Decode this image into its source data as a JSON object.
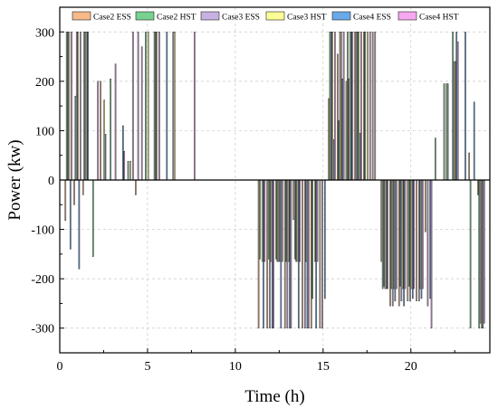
{
  "chart_data": {
    "type": "bar",
    "xlabel": "Time (h)",
    "ylabel": "Power (kw)",
    "xlim": [
      0,
      24.5
    ],
    "ylim": [
      -350,
      350
    ],
    "x_ticks": [
      0,
      5,
      10,
      15,
      20
    ],
    "y_ticks": [
      -300,
      -200,
      -100,
      0,
      100,
      200,
      300
    ],
    "grid": true,
    "legend_position": "top",
    "x": [
      0.5,
      1,
      1.5,
      2,
      2.5,
      3,
      3.5,
      4,
      4.5,
      5,
      5.5,
      6,
      6.5,
      7,
      7.5,
      8,
      8.5,
      9,
      9.5,
      10,
      10.5,
      11,
      11.5,
      12,
      12.5,
      13,
      13.5,
      14,
      14.5,
      15,
      15.5,
      16,
      16.5,
      17,
      17.5,
      18,
      18.5,
      19,
      19.5,
      20,
      20.5,
      21,
      21.5,
      22,
      22.5,
      23,
      23.5,
      24
    ],
    "series": [
      {
        "name": "Case2 ESS",
        "color": "#f5b98a",
        "values": [
          -82,
          -50,
          -30,
          0,
          200,
          0,
          0,
          0,
          -30,
          0,
          0,
          0,
          0,
          0,
          0,
          0,
          0,
          0,
          0,
          0,
          0,
          0,
          -300,
          -300,
          -160,
          -300,
          -80,
          -300,
          -300,
          -300,
          165,
          255,
          200,
          300,
          300,
          300,
          -165,
          -255,
          -255,
          -245,
          -245,
          -105,
          0,
          0,
          0,
          0,
          55,
          -30
        ]
      },
      {
        "name": "Case2 HST",
        "color": "#77d18f",
        "values": [
          300,
          170,
          300,
          -155,
          0,
          205,
          0,
          38,
          0,
          300,
          300,
          0,
          0,
          0,
          0,
          0,
          0,
          0,
          0,
          0,
          0,
          0,
          -160,
          -160,
          -165,
          -165,
          -160,
          0,
          -240,
          0,
          300,
          120,
          300,
          300,
          300,
          0,
          -220,
          -220,
          -215,
          -215,
          0,
          0,
          85,
          195,
          300,
          0,
          -300,
          -300
        ]
      },
      {
        "name": "Case3 ESS",
        "color": "#c8b1e2",
        "values": [
          300,
          300,
          300,
          0,
          0,
          0,
          0,
          0,
          300,
          0,
          300,
          0,
          300,
          0,
          0,
          0,
          0,
          0,
          0,
          0,
          0,
          0,
          0,
          -300,
          -165,
          -300,
          -165,
          -300,
          0,
          -300,
          300,
          300,
          205,
          300,
          0,
          300,
          -215,
          -255,
          -245,
          -245,
          -245,
          -255,
          0,
          0,
          240,
          0,
          0,
          -290
        ]
      },
      {
        "name": "Case3 HST",
        "color": "#fdfd96",
        "values": [
          300,
          300,
          300,
          0,
          162,
          0,
          0,
          38,
          0,
          300,
          300,
          0,
          300,
          0,
          0,
          0,
          0,
          0,
          0,
          0,
          0,
          0,
          -165,
          -165,
          -165,
          -165,
          -165,
          -165,
          -165,
          0,
          300,
          300,
          300,
          300,
          300,
          0,
          -220,
          -220,
          -220,
          -220,
          -220,
          0,
          0,
          195,
          240,
          0,
          0,
          -300
        ]
      },
      {
        "name": "Case4 ESS",
        "color": "#6aa8e8",
        "values": [
          -140,
          -180,
          300,
          0,
          93,
          0,
          110,
          0,
          0,
          0,
          0,
          300,
          0,
          0,
          0,
          0,
          0,
          0,
          0,
          0,
          0,
          0,
          -300,
          -300,
          -300,
          -300,
          -300,
          -300,
          -300,
          -240,
          82,
          205,
          300,
          95,
          0,
          0,
          -220,
          -245,
          -255,
          -240,
          -240,
          -240,
          0,
          195,
          300,
          300,
          158,
          -300
        ]
      },
      {
        "name": "Case4 HST",
        "color": "#f7a8f1",
        "values": [
          300,
          300,
          0,
          200,
          0,
          235,
          58,
          300,
          270,
          0,
          300,
          0,
          0,
          0,
          300,
          0,
          0,
          0,
          0,
          0,
          0,
          0,
          -165,
          -300,
          -165,
          -300,
          -165,
          -300,
          -165,
          0,
          300,
          300,
          300,
          300,
          300,
          0,
          -220,
          -220,
          -220,
          -220,
          -220,
          -300,
          0,
          0,
          280,
          0,
          0,
          -290
        ]
      }
    ]
  }
}
